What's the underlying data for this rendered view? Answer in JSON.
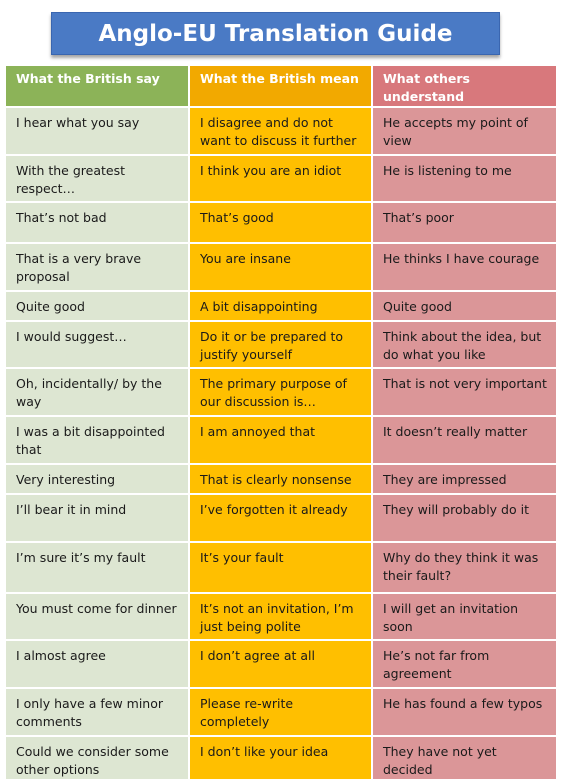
{
  "title": "Anglo-EU Translation Guide",
  "headers": {
    "british_say": "What the British say",
    "british_mean": "What the British mean",
    "others_understand": "What others understand"
  },
  "rows": [
    {
      "say": "I hear what you say",
      "mean": "I disagree and do not want to discuss it further",
      "understand": "He accepts my point of view"
    },
    {
      "say": "With the greatest respect…",
      "mean": "I think you are an idiot",
      "understand": "He is listening to me"
    },
    {
      "say": "That’s not bad",
      "mean": "That’s good",
      "understand": "That’s poor"
    },
    {
      "say": "That is a very brave proposal",
      "mean": "You are insane",
      "understand": "He thinks I have courage"
    },
    {
      "say": "Quite good",
      "mean": "A bit disappointing",
      "understand": "Quite good"
    },
    {
      "say": "I would suggest…",
      "mean": "Do it or be prepared to justify yourself",
      "understand": "Think about the idea, but do what you like"
    },
    {
      "say": "Oh, incidentally/ by the way",
      "mean": "The primary purpose of our discussion is…",
      "understand": "That is not very important"
    },
    {
      "say": "I was a bit disappointed that",
      "mean": "I am annoyed that",
      "understand": "It doesn’t really matter"
    },
    {
      "say": "Very interesting",
      "mean": "That is clearly nonsense",
      "understand": "They are impressed"
    },
    {
      "say": "I’ll bear it in mind",
      "mean": "I’ve forgotten it already",
      "understand": "They will probably do it"
    },
    {
      "say": "I’m sure it’s my fault",
      "mean": "It’s your fault",
      "understand": "Why do they think it was their fault?"
    },
    {
      "say": "You must come for dinner",
      "mean": "It’s not an invitation, I’m just being polite",
      "understand": "I will get an invitation soon"
    },
    {
      "say": "I almost agree",
      "mean": "I don’t agree at all",
      "understand": "He’s not far from agreement"
    },
    {
      "say": "I only have a few minor comments",
      "mean": "Please re-write completely",
      "understand": "He has found a few typos"
    },
    {
      "say": "Could we consider some other options",
      "mean": "I don’t like your idea",
      "understand": "They have not yet decided"
    }
  ]
}
